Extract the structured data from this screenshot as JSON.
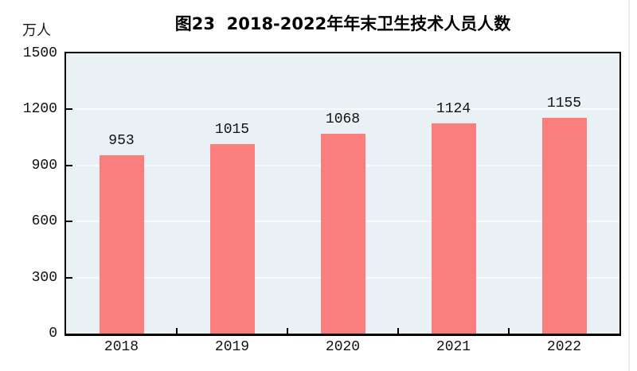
{
  "title": "图23  2018-2022年年末卫生技术人员人数",
  "unit_label": "万人",
  "chart_data": {
    "type": "bar",
    "title": "图23  2018-2022年年末卫生技术人员人数",
    "unit_label": "万人",
    "categories": [
      "2018",
      "2019",
      "2020",
      "2021",
      "2022"
    ],
    "values": [
      953,
      1015,
      1068,
      1124,
      1155
    ],
    "xlabel": "",
    "ylabel": "万人",
    "ylim": [
      0,
      1500
    ],
    "yticks": [
      0,
      300,
      600,
      900,
      1200,
      1500
    ],
    "grid": true,
    "legend": "none",
    "data_labels": [
      "953",
      "1015",
      "1068",
      "1124",
      "1155"
    ],
    "colors": {
      "bar": "#fb7e7e",
      "plot_background": "#eaf1f5",
      "gridline": "#f7fafb",
      "axis": "#000000",
      "text": "#111111",
      "page_edge": "#ededed"
    }
  }
}
